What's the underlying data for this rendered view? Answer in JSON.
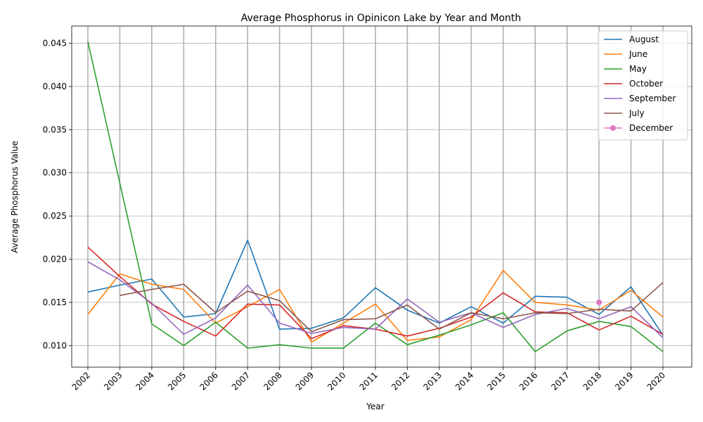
{
  "chart_data": {
    "type": "line",
    "title": "Average Phosphorus in Opinicon Lake by Year and Month",
    "xlabel": "Year",
    "ylabel": "Average Phosphorus Value",
    "x": [
      2002,
      2003,
      2004,
      2005,
      2006,
      2007,
      2008,
      2009,
      2010,
      2011,
      2012,
      2013,
      2014,
      2015,
      2016,
      2017,
      2018,
      2019,
      2020
    ],
    "ylim": [
      0.0075,
      0.047
    ],
    "yticks": [
      0.01,
      0.015,
      0.02,
      0.025,
      0.03,
      0.035,
      0.04,
      0.045
    ],
    "ytick_labels": [
      "0.010",
      "0.015",
      "0.020",
      "0.025",
      "0.030",
      "0.035",
      "0.040",
      "0.045"
    ],
    "grid": true,
    "legend_position": "top-right",
    "series": [
      {
        "name": "August",
        "color": "#1f77b4",
        "marker": "none",
        "values": [
          0.0162,
          0.017,
          0.0177,
          0.0133,
          0.0137,
          0.0222,
          0.0119,
          0.012,
          0.0132,
          0.0167,
          0.0141,
          0.0126,
          0.0145,
          0.0126,
          0.0157,
          0.0156,
          0.0136,
          0.0168,
          0.0112
        ]
      },
      {
        "name": "June",
        "color": "#ff7f0e",
        "marker": "none",
        "values": [
          0.0136,
          0.0183,
          0.0171,
          0.0165,
          0.0126,
          0.0145,
          0.0165,
          0.0104,
          0.0126,
          0.0148,
          0.0106,
          0.011,
          0.013,
          0.0187,
          0.015,
          0.0147,
          0.0141,
          0.0164,
          0.0133
        ]
      },
      {
        "name": "May",
        "color": "#2ca02c",
        "marker": "none",
        "values": [
          0.0452,
          0.0288,
          0.0125,
          0.01,
          0.0127,
          0.0097,
          0.0101,
          0.0097,
          0.0097,
          0.0126,
          0.0101,
          0.0112,
          0.0124,
          0.0138,
          0.0093,
          0.0117,
          0.0128,
          0.0122,
          0.0093
        ]
      },
      {
        "name": "October",
        "color": "#d62728",
        "marker": "none",
        "values": [
          0.0214,
          0.018,
          0.0148,
          0.0128,
          0.0111,
          0.0148,
          0.0147,
          0.0108,
          0.0123,
          0.0119,
          0.0111,
          0.012,
          0.0133,
          0.0161,
          0.0139,
          0.0138,
          0.0118,
          0.0134,
          0.0113
        ]
      },
      {
        "name": "September",
        "color": "#9467bd",
        "marker": "none",
        "values": [
          0.0197,
          0.0176,
          0.0149,
          0.0113,
          0.0132,
          0.017,
          0.0126,
          0.0114,
          0.0121,
          0.0119,
          0.0154,
          0.0127,
          0.0138,
          0.0121,
          0.0136,
          0.0143,
          0.0131,
          0.0145,
          0.0109
        ]
      },
      {
        "name": "July",
        "color": "#8c564b",
        "marker": "none",
        "x": [
          2003,
          2004,
          2005,
          2006,
          2007,
          2008,
          2009,
          2010,
          2011,
          2012,
          2013,
          2014,
          2015,
          2016,
          2017,
          2018,
          2019,
          2020
        ],
        "values": [
          0.0158,
          0.0165,
          0.0171,
          0.0138,
          0.0163,
          0.0152,
          0.0116,
          0.013,
          0.0131,
          0.0147,
          0.0119,
          0.0138,
          0.0131,
          0.0138,
          0.0137,
          0.0142,
          0.014,
          0.0173
        ]
      },
      {
        "name": "December",
        "color": "#e377c2",
        "marker": "circle",
        "x": [
          2018
        ],
        "values": [
          0.015
        ]
      }
    ]
  }
}
